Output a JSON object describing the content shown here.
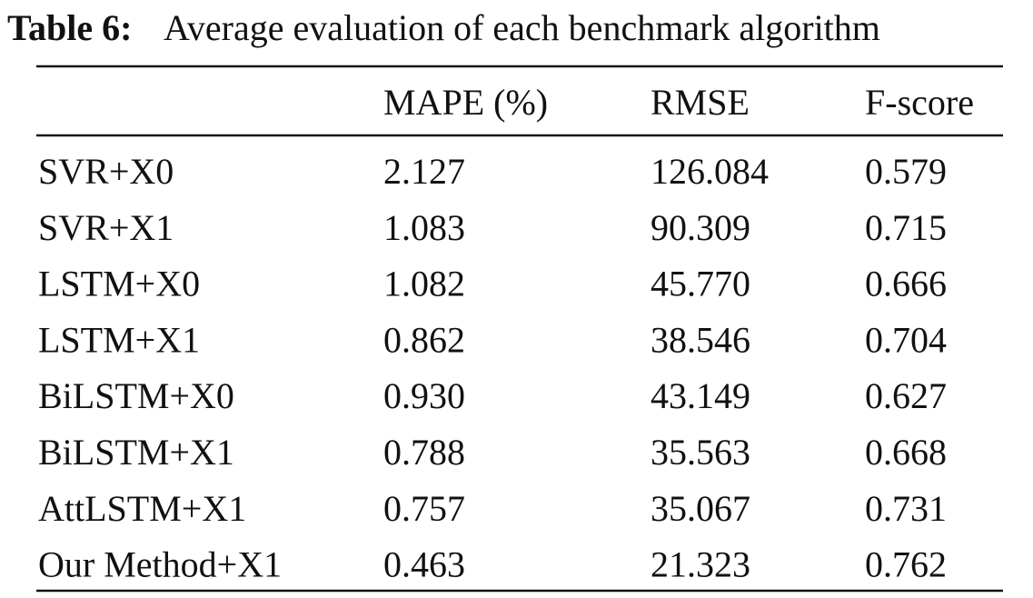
{
  "caption": {
    "label": "Table 6:",
    "text": "Average evaluation of each benchmark algorithm"
  },
  "table": {
    "header": [
      "MAPE (%)",
      "RMSE",
      "F-score"
    ],
    "rows": [
      [
        "SVR+X0",
        "2.127",
        "126.084",
        "0.579"
      ],
      [
        "SVR+X1",
        "1.083",
        "90.309",
        "0.715"
      ],
      [
        "LSTM+X0",
        "1.082",
        "45.770",
        "0.666"
      ],
      [
        "LSTM+X1",
        "0.862",
        "38.546",
        "0.704"
      ],
      [
        "BiLSTM+X0",
        "0.930",
        "43.149",
        "0.627"
      ],
      [
        "BiLSTM+X1",
        "0.788",
        "35.563",
        "0.668"
      ],
      [
        "AttLSTM+X1",
        "0.757",
        "35.067",
        "0.731"
      ],
      [
        "Our Method+X1",
        "0.463",
        "21.323",
        "0.762"
      ]
    ]
  }
}
